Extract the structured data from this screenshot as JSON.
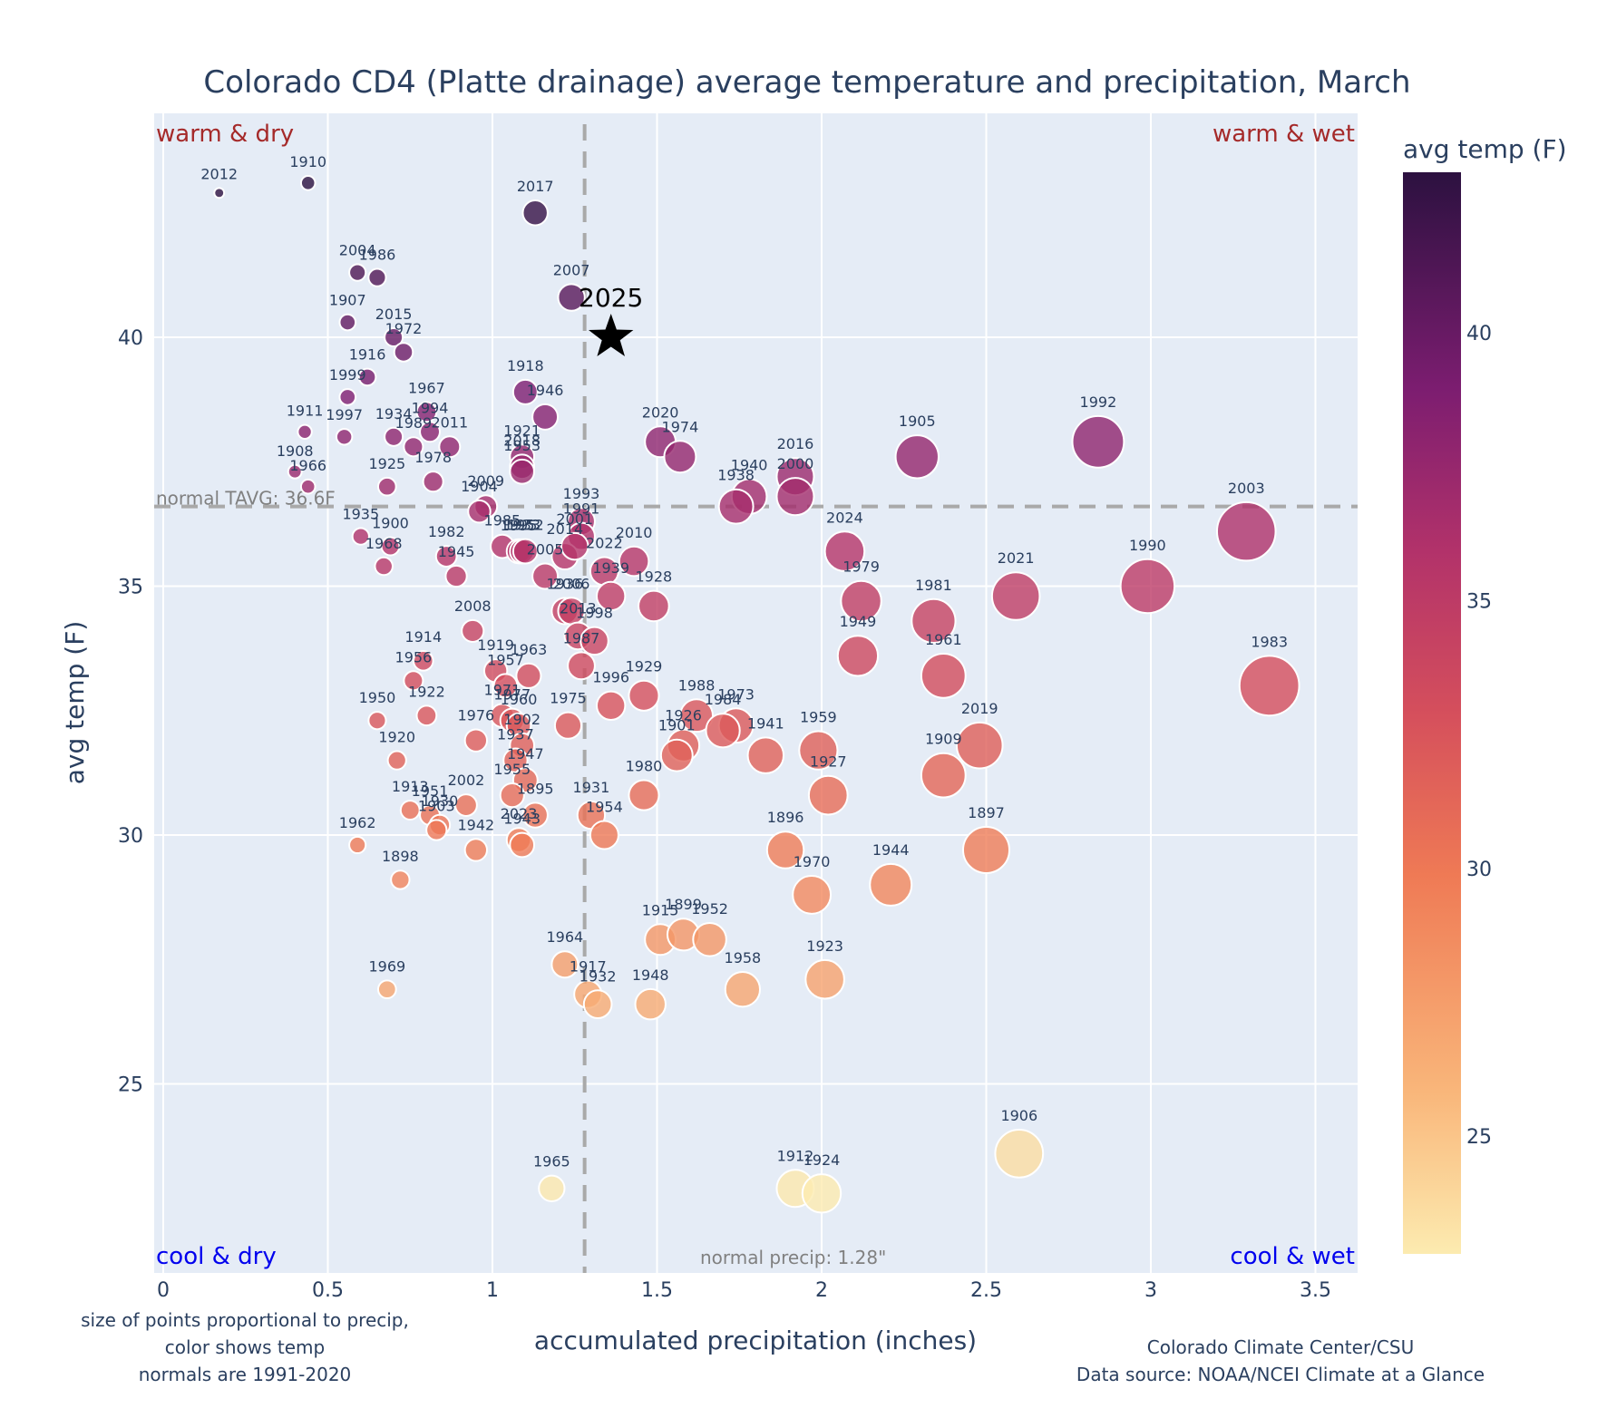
{
  "chart_data": {
    "type": "scatter",
    "title": "Colorado CD4 (Platte drainage) average temperature and precipitation, March",
    "xlabel": "accumulated precipitation (inches)",
    "ylabel": "avg temp (F)",
    "xlim": [
      -0.03,
      3.65
    ],
    "ylim": [
      21.2,
      43.9
    ],
    "xticks": [
      0,
      0.5,
      1,
      1.5,
      2,
      2.5,
      3,
      3.5
    ],
    "xtick_labels": [
      "0",
      "0.5",
      "1",
      "1.5",
      "2",
      "2.5",
      "3",
      "3.5"
    ],
    "yticks": [
      25,
      30,
      35,
      40
    ],
    "ytick_labels": [
      "25",
      "30",
      "35",
      "40"
    ],
    "grid": true,
    "colorbar": {
      "title": "avg temp (F)",
      "ticks": [
        25,
        30,
        35,
        40
      ],
      "tick_labels": [
        "25",
        "30",
        "35",
        "40"
      ],
      "range": [
        22.8,
        43.0
      ],
      "colorscale": "magma-reversed"
    },
    "normals": {
      "temp": 36.6,
      "temp_label": "normal TAVG: 36.6F",
      "precip": 1.28,
      "precip_label": "normal precip: 1.28\""
    },
    "quadrant_labels": {
      "top_left": "warm & dry",
      "top_right": "warm & wet",
      "bottom_left": "cool & dry",
      "bottom_right": "cool & wet"
    },
    "highlight": {
      "label": "2025",
      "x": 1.36,
      "y": 40.0
    },
    "points": [
      {
        "year": "2012",
        "x": 0.17,
        "y": 42.9
      },
      {
        "year": "1910",
        "x": 0.44,
        "y": 43.1
      },
      {
        "year": "2017",
        "x": 1.13,
        "y": 42.5
      },
      {
        "year": "2004",
        "x": 0.59,
        "y": 41.3
      },
      {
        "year": "1986",
        "x": 0.65,
        "y": 41.2
      },
      {
        "year": "2007",
        "x": 1.24,
        "y": 40.8
      },
      {
        "year": "1907",
        "x": 0.56,
        "y": 40.3
      },
      {
        "year": "2015",
        "x": 0.7,
        "y": 40.0
      },
      {
        "year": "1972",
        "x": 0.73,
        "y": 39.7
      },
      {
        "year": "1916",
        "x": 0.62,
        "y": 39.2
      },
      {
        "year": "1918",
        "x": 1.1,
        "y": 38.9
      },
      {
        "year": "1999",
        "x": 0.56,
        "y": 38.8
      },
      {
        "year": "1946",
        "x": 1.16,
        "y": 38.4
      },
      {
        "year": "1967",
        "x": 0.8,
        "y": 38.5
      },
      {
        "year": "1911",
        "x": 0.43,
        "y": 38.1
      },
      {
        "year": "1997",
        "x": 0.55,
        "y": 38.0
      },
      {
        "year": "1934",
        "x": 0.7,
        "y": 38.0
      },
      {
        "year": "1994",
        "x": 0.81,
        "y": 38.1
      },
      {
        "year": "1989",
        "x": 0.76,
        "y": 37.8
      },
      {
        "year": "2011",
        "x": 0.87,
        "y": 37.8
      },
      {
        "year": "1921",
        "x": 1.09,
        "y": 37.6
      },
      {
        "year": "2018",
        "x": 1.09,
        "y": 37.4
      },
      {
        "year": "1953",
        "x": 1.09,
        "y": 37.3
      },
      {
        "year": "1908",
        "x": 0.4,
        "y": 37.3
      },
      {
        "year": "1966",
        "x": 0.44,
        "y": 37.0
      },
      {
        "year": "1925",
        "x": 0.68,
        "y": 37.0
      },
      {
        "year": "1978",
        "x": 0.82,
        "y": 37.1
      },
      {
        "year": "2020",
        "x": 1.51,
        "y": 37.9
      },
      {
        "year": "1974",
        "x": 1.57,
        "y": 37.6
      },
      {
        "year": "2016",
        "x": 1.92,
        "y": 37.2
      },
      {
        "year": "2000",
        "x": 1.92,
        "y": 36.8
      },
      {
        "year": "1940",
        "x": 1.78,
        "y": 36.8
      },
      {
        "year": "1938",
        "x": 1.74,
        "y": 36.6
      },
      {
        "year": "1905",
        "x": 2.29,
        "y": 37.6
      },
      {
        "year": "1992",
        "x": 2.84,
        "y": 37.9
      },
      {
        "year": "2003",
        "x": 3.29,
        "y": 36.1
      },
      {
        "year": "2009",
        "x": 0.98,
        "y": 36.6
      },
      {
        "year": "1904",
        "x": 0.96,
        "y": 36.5
      },
      {
        "year": "1993",
        "x": 1.27,
        "y": 36.3
      },
      {
        "year": "1935",
        "x": 0.6,
        "y": 36.0
      },
      {
        "year": "1900",
        "x": 0.69,
        "y": 35.8
      },
      {
        "year": "1968",
        "x": 0.67,
        "y": 35.4
      },
      {
        "year": "1985",
        "x": 1.03,
        "y": 35.8
      },
      {
        "year": "1995",
        "x": 1.08,
        "y": 35.7
      },
      {
        "year": "1933",
        "x": 1.09,
        "y": 35.7
      },
      {
        "year": "1952",
        "x": 1.1,
        "y": 35.7
      },
      {
        "year": "1991",
        "x": 1.27,
        "y": 36.0
      },
      {
        "year": "2014",
        "x": 1.22,
        "y": 35.6
      },
      {
        "year": "2005",
        "x": 1.16,
        "y": 35.2
      },
      {
        "year": "2001",
        "x": 1.25,
        "y": 35.8
      },
      {
        "year": "1982",
        "x": 0.86,
        "y": 35.6
      },
      {
        "year": "1945",
        "x": 0.89,
        "y": 35.2
      },
      {
        "year": "2010",
        "x": 1.43,
        "y": 35.5
      },
      {
        "year": "2022",
        "x": 1.34,
        "y": 35.3
      },
      {
        "year": "1928",
        "x": 1.49,
        "y": 34.6
      },
      {
        "year": "1936",
        "x": 1.22,
        "y": 34.5
      },
      {
        "year": "2006",
        "x": 1.24,
        "y": 34.5
      },
      {
        "year": "1939",
        "x": 1.36,
        "y": 34.8
      },
      {
        "year": "2008",
        "x": 0.94,
        "y": 34.1
      },
      {
        "year": "2013",
        "x": 1.26,
        "y": 34.0
      },
      {
        "year": "1998",
        "x": 1.31,
        "y": 33.9
      },
      {
        "year": "1914",
        "x": 0.79,
        "y": 33.5
      },
      {
        "year": "1956",
        "x": 0.76,
        "y": 33.1
      },
      {
        "year": "1919",
        "x": 1.01,
        "y": 33.3
      },
      {
        "year": "1963",
        "x": 1.11,
        "y": 33.2
      },
      {
        "year": "1957",
        "x": 1.04,
        "y": 33.0
      },
      {
        "year": "2024",
        "x": 2.07,
        "y": 35.7
      },
      {
        "year": "1979",
        "x": 2.12,
        "y": 34.7
      },
      {
        "year": "1949",
        "x": 2.11,
        "y": 33.6
      },
      {
        "year": "1981",
        "x": 2.34,
        "y": 34.3
      },
      {
        "year": "1961",
        "x": 2.37,
        "y": 33.2
      },
      {
        "year": "2021",
        "x": 2.59,
        "y": 34.8
      },
      {
        "year": "1990",
        "x": 2.99,
        "y": 35.0
      },
      {
        "year": "1983",
        "x": 3.36,
        "y": 33.0
      },
      {
        "year": "1929",
        "x": 1.46,
        "y": 32.8
      },
      {
        "year": "1996",
        "x": 1.36,
        "y": 32.6
      },
      {
        "year": "1987",
        "x": 1.27,
        "y": 33.4
      },
      {
        "year": "1988",
        "x": 1.62,
        "y": 32.4
      },
      {
        "year": "1973",
        "x": 1.74,
        "y": 32.2
      },
      {
        "year": "1984",
        "x": 1.7,
        "y": 32.1
      },
      {
        "year": "1926",
        "x": 1.58,
        "y": 31.8
      },
      {
        "year": "1901",
        "x": 1.56,
        "y": 31.6
      },
      {
        "year": "1941",
        "x": 1.83,
        "y": 31.6
      },
      {
        "year": "1959",
        "x": 1.99,
        "y": 31.7
      },
      {
        "year": "1927",
        "x": 2.02,
        "y": 30.8
      },
      {
        "year": "2019",
        "x": 2.48,
        "y": 31.8
      },
      {
        "year": "1909",
        "x": 2.37,
        "y": 31.2
      },
      {
        "year": "1950",
        "x": 0.65,
        "y": 32.3
      },
      {
        "year": "1922",
        "x": 0.8,
        "y": 32.4
      },
      {
        "year": "1971",
        "x": 1.03,
        "y": 32.4
      },
      {
        "year": "1977",
        "x": 1.06,
        "y": 32.3
      },
      {
        "year": "1960",
        "x": 1.08,
        "y": 32.2
      },
      {
        "year": "1976",
        "x": 0.95,
        "y": 31.9
      },
      {
        "year": "1902",
        "x": 1.09,
        "y": 31.8
      },
      {
        "year": "1975",
        "x": 1.23,
        "y": 32.2
      },
      {
        "year": "1937",
        "x": 1.07,
        "y": 31.5
      },
      {
        "year": "1920",
        "x": 0.71,
        "y": 31.5
      },
      {
        "year": "1947",
        "x": 1.1,
        "y": 31.1
      },
      {
        "year": "1955",
        "x": 1.06,
        "y": 30.8
      },
      {
        "year": "1895",
        "x": 1.13,
        "y": 30.4
      },
      {
        "year": "1931",
        "x": 1.3,
        "y": 30.4
      },
      {
        "year": "1954",
        "x": 1.34,
        "y": 30.0
      },
      {
        "year": "1980",
        "x": 1.46,
        "y": 30.8
      },
      {
        "year": "1913",
        "x": 0.75,
        "y": 30.5
      },
      {
        "year": "1951",
        "x": 0.81,
        "y": 30.4
      },
      {
        "year": "1930",
        "x": 0.84,
        "y": 30.2
      },
      {
        "year": "1903",
        "x": 0.83,
        "y": 30.1
      },
      {
        "year": "2002",
        "x": 0.92,
        "y": 30.6
      },
      {
        "year": "1942",
        "x": 0.95,
        "y": 29.7
      },
      {
        "year": "2023",
        "x": 1.08,
        "y": 29.9
      },
      {
        "year": "1943",
        "x": 1.09,
        "y": 29.8
      },
      {
        "year": "1962",
        "x": 0.59,
        "y": 29.8
      },
      {
        "year": "1898",
        "x": 0.72,
        "y": 29.1
      },
      {
        "year": "1896",
        "x": 1.89,
        "y": 29.7
      },
      {
        "year": "1970",
        "x": 1.97,
        "y": 28.8
      },
      {
        "year": "1944",
        "x": 2.21,
        "y": 29.0
      },
      {
        "year": "1897",
        "x": 2.5,
        "y": 29.7
      },
      {
        "year": "1915",
        "x": 1.51,
        "y": 27.9
      },
      {
        "year": "1899",
        "x": 1.58,
        "y": 28.0
      },
      {
        "year": "1952b",
        "x": 1.66,
        "y": 27.9
      },
      {
        "year": "1964",
        "x": 1.22,
        "y": 27.4
      },
      {
        "year": "1917",
        "x": 1.29,
        "y": 26.8
      },
      {
        "year": "1932",
        "x": 1.32,
        "y": 26.6
      },
      {
        "year": "1948",
        "x": 1.48,
        "y": 26.6
      },
      {
        "year": "1958",
        "x": 1.76,
        "y": 26.9
      },
      {
        "year": "1923",
        "x": 2.01,
        "y": 27.1
      },
      {
        "year": "1969",
        "x": 0.68,
        "y": 26.9
      },
      {
        "year": "1965",
        "x": 1.18,
        "y": 22.9
      },
      {
        "year": "1912",
        "x": 1.92,
        "y": 22.9
      },
      {
        "year": "1924",
        "x": 2.0,
        "y": 22.8
      },
      {
        "year": "1906",
        "x": 2.6,
        "y": 23.6
      }
    ]
  },
  "notes": {
    "left": [
      "size of points proportional to precip,",
      "color shows temp",
      "normals are 1991-2020"
    ],
    "right": [
      "Colorado Climate Center/CSU",
      "Data source: NOAA/NCEI Climate at a Glance"
    ]
  }
}
